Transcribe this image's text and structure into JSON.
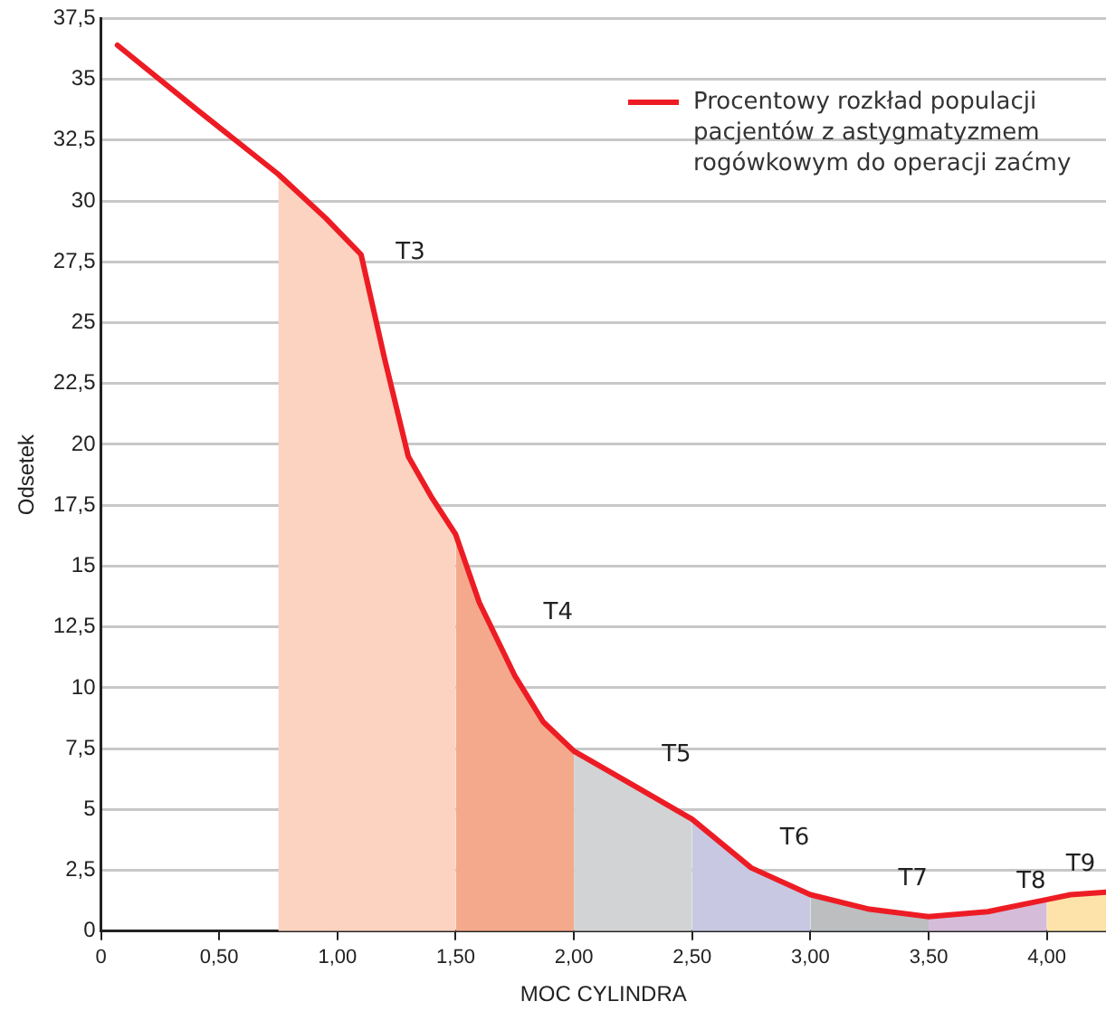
{
  "chart_data": {
    "type": "line",
    "xlabel": "MOC CYLINDRA",
    "ylabel": "Odsetek",
    "series": [
      {
        "name": "Procentowy rozkład populacji pacjentów z astygmatyzmem rogówkowym do operacji zaćmy",
        "color": "#ed1c24",
        "x": [
          0.07,
          0.4,
          0.75,
          0.95,
          1.1,
          1.2,
          1.3,
          1.4,
          1.5,
          1.6,
          1.75,
          1.87,
          2.0,
          2.25,
          2.5,
          2.75,
          3.0,
          3.25,
          3.5,
          3.75,
          4.0,
          4.1,
          4.25
        ],
        "values": [
          36.4,
          33.8,
          31.1,
          29.3,
          27.8,
          23.5,
          19.5,
          17.8,
          16.3,
          13.5,
          10.5,
          8.6,
          7.4,
          6.0,
          4.6,
          2.6,
          1.5,
          0.9,
          0.6,
          0.8,
          1.3,
          1.5,
          1.6
        ]
      },
      {
        "type": "area",
        "name": "T3",
        "color": "#fbd3c0",
        "x": [
          0.75,
          0.95,
          1.1,
          1.2,
          1.3,
          1.4,
          1.5
        ],
        "values": [
          31.1,
          29.3,
          27.8,
          23.5,
          19.5,
          17.8,
          16.3
        ]
      },
      {
        "type": "area",
        "name": "T4",
        "color": "#f5a98c",
        "x": [
          1.5,
          1.6,
          1.75,
          1.87,
          2.0
        ],
        "values": [
          16.3,
          13.5,
          10.5,
          8.6,
          7.4
        ]
      },
      {
        "type": "area",
        "name": "T5",
        "color": "#d1d3d4",
        "x": [
          2.0,
          2.25,
          2.5
        ],
        "values": [
          7.4,
          6.0,
          4.6
        ]
      },
      {
        "type": "area",
        "name": "T6",
        "color": "#c8c8e2",
        "x": [
          2.5,
          2.75,
          3.0
        ],
        "values": [
          4.6,
          2.6,
          1.5
        ]
      },
      {
        "type": "area",
        "name": "T7",
        "color": "#bcbec0",
        "x": [
          3.0,
          3.25,
          3.5
        ],
        "values": [
          1.5,
          0.9,
          0.6
        ]
      },
      {
        "type": "area",
        "name": "T8",
        "color": "#d5bcd9",
        "x": [
          3.5,
          3.75,
          4.0
        ],
        "values": [
          0.6,
          0.8,
          1.3
        ]
      },
      {
        "type": "area",
        "name": "T9",
        "color": "#fde3a9",
        "x": [
          4.0,
          4.1,
          4.25
        ],
        "values": [
          1.3,
          1.5,
          1.6
        ]
      }
    ],
    "xlim": [
      0,
      4.25
    ],
    "xticks": [
      0,
      {
        "value": 0.5,
        "label": "0,50"
      },
      {
        "value": 1,
        "label": "1,00"
      },
      {
        "value": 1.5,
        "label": "1,50"
      },
      {
        "value": 2,
        "label": "2,00"
      },
      {
        "value": 2.5,
        "label": "2,50"
      },
      {
        "value": 3,
        "label": "3,00"
      },
      {
        "value": 3.5,
        "label": "3,50"
      },
      {
        "value": 4,
        "label": "4,00"
      }
    ],
    "ylim": [
      0,
      37.5
    ],
    "yticks": [
      0,
      {
        "value": 2.5,
        "label": "2,5"
      },
      5,
      {
        "value": 7.5,
        "label": "7,5"
      },
      10,
      {
        "value": 12.5,
        "label": "12,5"
      },
      15,
      {
        "value": 17.5,
        "label": "17,5"
      },
      20,
      {
        "value": 22.5,
        "label": "22,5"
      },
      25,
      {
        "value": 27.5,
        "label": "27,5"
      },
      30,
      {
        "value": 32.5,
        "label": "32,5"
      },
      35,
      {
        "value": 37.5,
        "label": "37,5"
      }
    ],
    "grid": "y",
    "legend": "top right",
    "marker": "none",
    "line_style": "solid"
  }
}
